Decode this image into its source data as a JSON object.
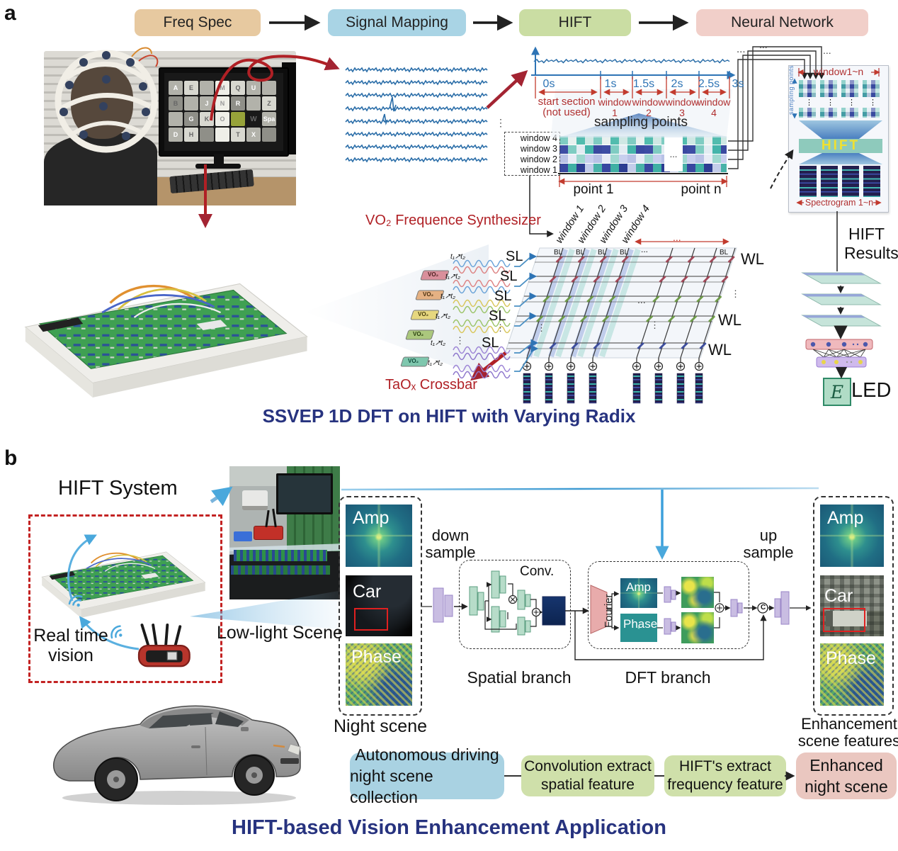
{
  "panel_a": {
    "label": "a",
    "flow": {
      "freq": "Freq Spec",
      "signal": "Signal Mapping",
      "hift": "HIFT",
      "nn": "Neural Network"
    },
    "photo": {
      "letters": [
        "A",
        "E",
        "",
        "M",
        "Q",
        "U",
        "",
        "B",
        "",
        "J",
        "N",
        "R",
        "",
        "Z",
        "",
        "G",
        "K",
        "O",
        "",
        "W",
        "Spa",
        "D",
        "H",
        "",
        "",
        "T",
        "X",
        ""
      ]
    },
    "timeline": {
      "ticks": [
        "0s",
        "1s",
        "1.5s",
        "2s",
        "2.5s",
        "3s"
      ],
      "start1": "start section",
      "start2": "(not used)",
      "win": "window",
      "n1": "1",
      "n2": "2",
      "n3": "3",
      "n4": "4",
      "sampling": "sampling points"
    },
    "stack": {
      "w4": "window 4",
      "w3": "window 3",
      "w2": "window 2",
      "w1": "window 1"
    },
    "points": {
      "p1": "point 1",
      "pn": "point n"
    },
    "synth": "VO₂ Frequence Synthesizer",
    "slant": [
      "window 1",
      "window 2",
      "window 3",
      "window 4"
    ],
    "labels": {
      "sl": "SL",
      "wl": "WL",
      "bl": "BL",
      "vo2": "VO₂",
      "t": "t₁↗t₂",
      "hdots": "...",
      "vdots": "⋮"
    },
    "taox": "TaOₓ Crossbar",
    "right_panel": {
      "window_range": "window1~n",
      "sampling": "sampling points",
      "hift": "HIFT",
      "spectrogram": "Spectrogram 1~n"
    },
    "results": {
      "l1": "HIFT",
      "l2": "Results"
    },
    "led": {
      "e": "E",
      "led": "LED"
    },
    "caption": "SSVEP 1D DFT on HIFT with Varying Radix"
  },
  "panel_b": {
    "label": "b",
    "title": "HIFT System",
    "realtime": {
      "l1": "Real time",
      "l2": "vision"
    },
    "lowlight": "Low-light Scene",
    "img_labels": {
      "amp": "Amp",
      "car": "Car",
      "phase": "Phase"
    },
    "night_caption": "Night scene",
    "down": {
      "l1": "down",
      "l2": "sample"
    },
    "conv": "Conv.",
    "spatial": "Spatial branch",
    "fourier": "Fourier",
    "dft": "DFT branch",
    "up": {
      "l1": "up",
      "l2": "sample"
    },
    "concat": "C",
    "enh": {
      "l1": "Enhancement",
      "l2": "scene features"
    },
    "flow": {
      "b1": {
        "l1": "Autonomous driving",
        "l2": "night scene collection"
      },
      "b2": {
        "l1": "Convolution extract",
        "l2": "spatial feature"
      },
      "b3": {
        "l1": "HIFT's extract",
        "l2": "frequency feature"
      },
      "b4": {
        "l1": "Enhanced",
        "l2": "night scene"
      }
    },
    "caption": "HIFT-based Vision Enhancement Application"
  },
  "colors": {
    "caption_navy": "#27337f",
    "dark_red": "#b02025",
    "timeline_blue": "#2e74b5",
    "timeline_red": "#c23b2e",
    "hift_yellow": "#f0e030"
  }
}
